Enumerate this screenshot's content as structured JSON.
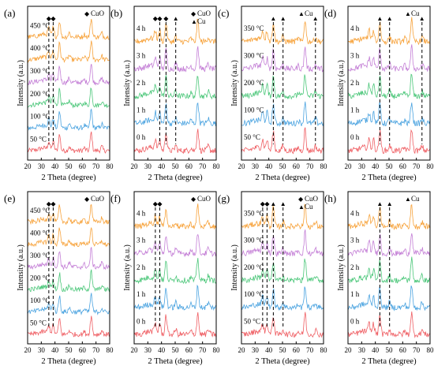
{
  "colors": {
    "red": "#ef5e63",
    "blue": "#4aa3e0",
    "green": "#4cc77a",
    "purple": "#c47fd6",
    "orange": "#f7a23a",
    "axis": "#000000"
  },
  "shared": {
    "xlabel": "2 Theta (degree)",
    "ylabel": "Intensity (a.u.)",
    "xlim": [
      20,
      80
    ],
    "xticks": [
      "20",
      "30",
      "40",
      "50",
      "60",
      "70",
      "80"
    ]
  },
  "chart_data": [
    {
      "type": "line",
      "label": "(a)",
      "trace_labels": [
        "50 °C",
        "100 °C",
        "200 °C",
        "300 °C",
        "400 °C",
        "450 °C"
      ],
      "legend": [
        {
          "marker": "◆",
          "text": "CuO"
        }
      ],
      "markers": [
        {
          "symbol": "◆",
          "x": 35.5
        },
        {
          "symbol": "◆",
          "x": 38.7
        }
      ],
      "dashed_lines": [
        35.5,
        38.7
      ],
      "peaks": [
        {
          "x": 35.5,
          "h": 0.35
        },
        {
          "x": 38.7,
          "h": 0.4
        },
        {
          "x": 43.3,
          "h": 0.75
        },
        {
          "x": 50.4,
          "h": 0.2
        },
        {
          "x": 61.5,
          "h": 0.12
        },
        {
          "x": 66.5,
          "h": 0.85
        },
        {
          "x": 74.2,
          "h": 0.18
        }
      ]
    },
    {
      "type": "line",
      "label": "(b)",
      "trace_labels": [
        "0 h",
        "1 h",
        "2 h",
        "3 h",
        "4 h"
      ],
      "legend": [
        {
          "marker": "◆",
          "text": "CuO"
        },
        {
          "marker": "▲",
          "text": "Cu"
        }
      ],
      "markers": [
        {
          "symbol": "◆",
          "x": 35.5
        },
        {
          "symbol": "◆",
          "x": 38.7
        },
        {
          "symbol": "◆",
          "x": 43.3
        },
        {
          "symbol": "▲",
          "x": 50.4
        }
      ],
      "dashed_lines": [
        38.7,
        43.3,
        50.4
      ],
      "peaks": [
        {
          "x": 35.5,
          "h": 0.35
        },
        {
          "x": 38.7,
          "h": 0.4
        },
        {
          "x": 43.3,
          "h": 0.75
        },
        {
          "x": 50.4,
          "h": 0.2
        },
        {
          "x": 61.5,
          "h": 0.12
        },
        {
          "x": 66.5,
          "h": 0.85
        },
        {
          "x": 74.2,
          "h": 0.18
        }
      ]
    },
    {
      "type": "line",
      "label": "(c)",
      "trace_labels": [
        "50 °C",
        "100 °C",
        "200 °C",
        "300 °C",
        "350 °C"
      ],
      "legend": [
        {
          "marker": "▲",
          "text": "Cu"
        }
      ],
      "markers": [
        {
          "symbol": "▲",
          "x": 43.3
        },
        {
          "symbol": "▲",
          "x": 50.4
        },
        {
          "symbol": "▲",
          "x": 74.1
        }
      ],
      "dashed_lines": [
        43.3,
        50.4,
        74.1
      ],
      "peaks": [
        {
          "x": 35.5,
          "h": 0.35
        },
        {
          "x": 38.7,
          "h": 0.4
        },
        {
          "x": 43.3,
          "h": 0.75
        },
        {
          "x": 50.4,
          "h": 0.2
        },
        {
          "x": 61.5,
          "h": 0.12
        },
        {
          "x": 66.5,
          "h": 0.85
        },
        {
          "x": 74.2,
          "h": 0.18
        }
      ]
    },
    {
      "type": "line",
      "label": "(d)",
      "trace_labels": [
        "0 h",
        "1 h",
        "2 h",
        "3 h",
        "4 h"
      ],
      "legend": [
        {
          "marker": "▲",
          "text": "Cu"
        }
      ],
      "markers": [
        {
          "symbol": "▲",
          "x": 43.3
        },
        {
          "symbol": "▲",
          "x": 50.4
        },
        {
          "symbol": "▲",
          "x": 74.1
        }
      ],
      "dashed_lines": [
        43.3,
        50.4,
        74.1
      ],
      "peaks": [
        {
          "x": 35.5,
          "h": 0.35
        },
        {
          "x": 38.7,
          "h": 0.4
        },
        {
          "x": 43.3,
          "h": 0.75
        },
        {
          "x": 50.4,
          "h": 0.2
        },
        {
          "x": 61.5,
          "h": 0.12
        },
        {
          "x": 66.5,
          "h": 0.85
        },
        {
          "x": 74.2,
          "h": 0.18
        }
      ]
    },
    {
      "type": "line",
      "label": "(e)",
      "trace_labels": [
        "50 °C",
        "100 °C",
        "200 °C",
        "300 °C",
        "400 °C",
        "450 °C"
      ],
      "legend": [
        {
          "marker": "◆",
          "text": "CuO"
        }
      ],
      "markers": [
        {
          "symbol": "◆",
          "x": 35.5
        },
        {
          "symbol": "◆",
          "x": 38.7
        }
      ],
      "dashed_lines": [
        35.5,
        38.7
      ],
      "peaks": [
        {
          "x": 35.5,
          "h": 0.35
        },
        {
          "x": 38.7,
          "h": 0.4
        },
        {
          "x": 43.3,
          "h": 0.75
        },
        {
          "x": 50.4,
          "h": 0.2
        },
        {
          "x": 61.5,
          "h": 0.12
        },
        {
          "x": 66.5,
          "h": 0.85
        },
        {
          "x": 74.2,
          "h": 0.18
        }
      ]
    },
    {
      "type": "line",
      "label": "(f)",
      "trace_labels": [
        "0 h",
        "1 h",
        "2 h",
        "3 h",
        "4 h"
      ],
      "legend": [
        {
          "marker": "◆",
          "text": "CuO"
        }
      ],
      "markers": [
        {
          "symbol": "◆",
          "x": 35.5
        },
        {
          "symbol": "◆",
          "x": 38.7
        }
      ],
      "dashed_lines": [
        35.5,
        38.7
      ],
      "peaks": [
        {
          "x": 35.5,
          "h": 0.35
        },
        {
          "x": 38.7,
          "h": 0.4
        },
        {
          "x": 43.3,
          "h": 0.75
        },
        {
          "x": 50.4,
          "h": 0.2
        },
        {
          "x": 61.5,
          "h": 0.12
        },
        {
          "x": 66.5,
          "h": 0.85
        },
        {
          "x": 74.2,
          "h": 0.18
        }
      ]
    },
    {
      "type": "line",
      "label": "(g)",
      "trace_labels": [
        "50 °C",
        "100 °C",
        "200 °C",
        "300 °C",
        "350 °C"
      ],
      "legend": [
        {
          "marker": "◆",
          "text": "CuO"
        },
        {
          "marker": "▲",
          "text": "Cu"
        }
      ],
      "markers": [
        {
          "symbol": "◆",
          "x": 35.5
        },
        {
          "symbol": "◆",
          "x": 38.7
        },
        {
          "symbol": "▲",
          "x": 43.3
        },
        {
          "symbol": "▲",
          "x": 50.4
        }
      ],
      "dashed_lines": [
        35.5,
        38.7,
        43.3,
        50.4
      ],
      "peaks": [
        {
          "x": 35.5,
          "h": 0.35
        },
        {
          "x": 38.7,
          "h": 0.4
        },
        {
          "x": 43.3,
          "h": 0.75
        },
        {
          "x": 50.4,
          "h": 0.2
        },
        {
          "x": 61.5,
          "h": 0.12
        },
        {
          "x": 66.5,
          "h": 0.85
        },
        {
          "x": 74.2,
          "h": 0.18
        }
      ]
    },
    {
      "type": "line",
      "label": "(h)",
      "trace_labels": [
        "0 h",
        "1 h",
        "2 h",
        "3 h",
        "4 h"
      ],
      "legend": [
        {
          "marker": "▲",
          "text": "Cu"
        }
      ],
      "markers": [
        {
          "symbol": "▲",
          "x": 43.3
        },
        {
          "symbol": "▲",
          "x": 50.4
        }
      ],
      "dashed_lines": [
        43.3,
        50.4
      ],
      "peaks": [
        {
          "x": 35.5,
          "h": 0.35
        },
        {
          "x": 38.7,
          "h": 0.4
        },
        {
          "x": 43.3,
          "h": 0.75
        },
        {
          "x": 50.4,
          "h": 0.2
        },
        {
          "x": 61.5,
          "h": 0.12
        },
        {
          "x": 66.5,
          "h": 0.85
        },
        {
          "x": 74.2,
          "h": 0.18
        }
      ]
    }
  ]
}
